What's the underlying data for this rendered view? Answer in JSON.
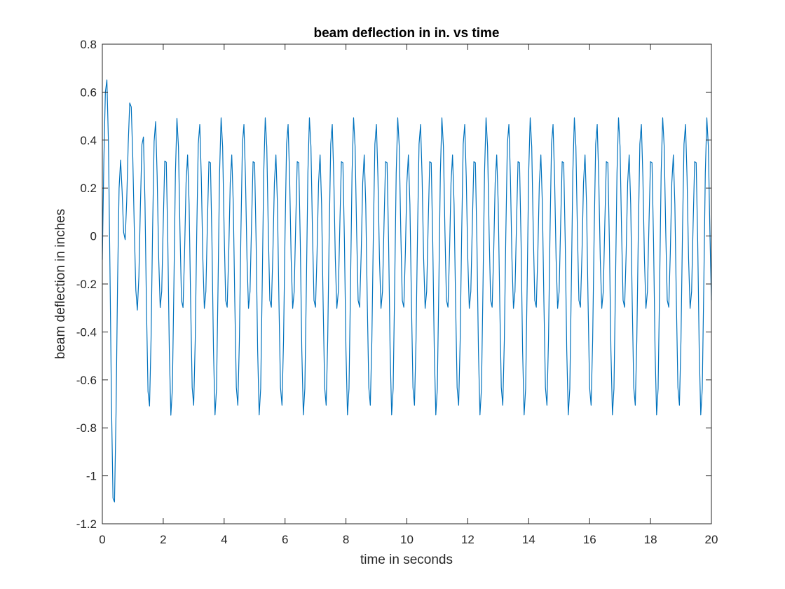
{
  "chart_data": {
    "type": "line",
    "title": "beam deflection in in. vs time",
    "xlabel": "time in seconds",
    "ylabel": "beam deflection in inches",
    "xlim": [
      0,
      20
    ],
    "ylim": [
      -1.2,
      0.8
    ],
    "xticks": [
      "0",
      "2",
      "4",
      "6",
      "8",
      "10",
      "12",
      "14",
      "16",
      "18",
      "20"
    ],
    "yticks": [
      "-1.2",
      "-1",
      "-0.8",
      "-0.6",
      "-0.4",
      "-0.2",
      "0",
      "0.2",
      "0.4",
      "0.6",
      "0.8"
    ],
    "grid": false,
    "box": true,
    "series": [
      {
        "color": "#0072BD",
        "x": [
          0,
          0.05,
          0.1,
          0.15,
          0.2,
          0.25,
          0.3,
          0.35,
          0.4,
          0.45,
          0.5,
          0.55,
          0.6,
          0.65,
          0.7,
          0.75,
          0.8,
          0.85,
          0.9,
          0.95,
          1.0,
          1.05,
          1.1,
          1.15,
          1.2,
          1.25,
          1.3,
          1.35,
          1.4,
          1.45,
          1.5,
          1.55,
          1.6,
          1.65,
          1.7,
          1.75,
          1.8,
          1.85,
          1.9,
          1.95,
          2.0,
          2.05,
          2.1,
          2.15,
          2.2,
          2.25,
          2.3,
          2.35,
          2.4,
          2.45,
          2.5,
          2.55,
          2.6,
          2.65,
          2.7,
          2.75,
          2.8,
          2.85,
          2.9,
          2.95,
          3.0,
          3.05,
          3.1,
          3.15,
          3.2,
          3.25,
          3.3,
          3.35,
          3.4,
          3.45,
          3.5,
          3.55,
          3.6,
          3.65,
          3.7,
          3.75,
          3.8,
          3.85,
          3.9,
          3.95,
          4.0,
          4.05,
          4.1,
          4.15,
          4.2,
          4.25,
          4.3,
          4.35,
          4.4,
          4.45,
          4.5,
          4.55,
          4.6,
          4.65,
          4.7,
          4.75,
          4.8,
          4.85,
          4.9,
          4.95,
          5.0,
          5.05,
          5.1,
          5.15,
          5.2,
          5.25,
          5.3,
          5.35,
          5.4,
          5.45,
          5.5,
          5.55,
          5.6,
          5.65,
          5.7,
          5.75,
          5.8,
          5.85,
          5.9,
          5.95,
          6.0,
          6.05,
          6.1,
          6.15,
          6.2,
          6.25,
          6.3,
          6.35,
          6.4,
          6.45,
          6.5,
          6.55,
          6.6,
          6.65,
          6.7,
          6.75,
          6.8,
          6.85,
          6.9,
          6.95,
          7.0,
          7.05,
          7.1,
          7.15,
          7.2,
          7.25,
          7.3,
          7.35,
          7.4,
          7.45,
          7.5,
          7.55,
          7.6,
          7.65,
          7.7,
          7.75,
          7.8,
          7.85,
          7.9,
          7.95,
          8.0,
          8.05,
          8.1,
          8.15,
          8.2,
          8.25,
          8.3,
          8.35,
          8.4,
          8.45,
          8.5,
          8.55,
          8.6,
          8.65,
          8.7,
          8.75,
          8.8,
          8.85,
          8.9,
          8.95,
          9.0,
          9.05,
          9.1,
          9.15,
          9.2,
          9.25,
          9.3,
          9.35,
          9.4,
          9.45,
          9.5,
          9.55,
          9.6,
          9.65,
          9.7,
          9.75,
          9.8,
          9.85,
          9.9,
          9.95,
          10.0,
          10.05,
          10.1,
          10.15,
          10.2,
          10.25,
          10.3,
          10.35,
          10.4,
          10.45,
          10.5,
          10.55,
          10.6,
          10.65,
          10.7,
          10.75,
          10.8,
          10.85,
          10.9,
          10.95,
          11.0,
          11.05,
          11.1,
          11.15,
          11.2,
          11.25,
          11.3,
          11.35,
          11.4,
          11.45,
          11.5,
          11.55,
          11.6,
          11.65,
          11.7,
          11.75,
          11.8,
          11.85,
          11.9,
          11.95,
          12.0,
          12.05,
          12.1,
          12.15,
          12.2,
          12.25,
          12.3,
          12.35,
          12.4,
          12.45,
          12.5,
          12.55,
          12.6,
          12.65,
          12.7,
          12.75,
          12.8,
          12.85,
          12.9,
          12.95,
          13.0,
          13.05,
          13.1,
          13.15,
          13.2,
          13.25,
          13.3,
          13.35,
          13.4,
          13.45,
          13.5,
          13.55,
          13.6,
          13.65,
          13.7,
          13.75,
          13.8,
          13.85,
          13.9,
          13.95,
          14.0,
          14.05,
          14.1,
          14.15,
          14.2,
          14.25,
          14.3,
          14.35,
          14.4,
          14.45,
          14.5,
          14.55,
          14.6,
          14.65,
          14.7,
          14.75,
          14.8,
          14.85,
          14.9,
          14.95,
          15.0,
          15.05,
          15.1,
          15.15,
          15.2,
          15.25,
          15.3,
          15.35,
          15.4,
          15.45,
          15.5,
          15.55,
          15.6,
          15.65,
          15.7,
          15.75,
          15.8,
          15.85,
          15.9,
          15.95,
          16.0,
          16.05,
          16.1,
          16.15,
          16.2,
          16.25,
          16.3,
          16.35,
          16.4,
          16.45,
          16.5,
          16.55,
          16.6,
          16.65,
          16.7,
          16.75,
          16.8,
          16.85,
          16.9,
          16.95,
          17.0,
          17.05,
          17.1,
          17.15,
          17.2,
          17.25,
          17.3,
          17.35,
          17.4,
          17.45,
          17.5,
          17.55,
          17.6,
          17.65,
          17.7,
          17.75,
          17.8,
          17.85,
          17.9,
          17.95,
          18.0,
          18.05,
          18.1,
          18.15,
          18.2,
          18.25,
          18.3,
          18.35,
          18.4,
          18.45,
          18.5,
          18.55,
          18.6,
          18.65,
          18.7,
          18.75,
          18.8,
          18.85,
          18.9,
          18.95,
          19.0,
          19.05,
          19.1,
          19.15,
          19.2,
          19.25,
          19.3,
          19.35,
          19.4,
          19.45,
          19.5,
          19.55,
          19.6,
          19.65,
          19.7,
          19.75,
          19.8,
          19.85,
          19.9,
          19.95,
          20.0
        ],
        "y": [
          -0.099,
          0.314,
          0.6,
          0.651,
          0.395,
          -0.129,
          -0.694,
          -1.093,
          -1.109,
          -0.739,
          -0.201,
          0.199,
          0.317,
          0.186,
          0.015,
          -0.015,
          0.145,
          0.384,
          0.555,
          0.538,
          0.328,
          0.028,
          -0.225,
          -0.309,
          -0.17,
          0.124,
          0.381,
          0.413,
          0.143,
          -0.3,
          -0.648,
          -0.709,
          -0.431,
          0.02,
          0.394,
          0.477,
          0.252,
          -0.088,
          -0.298,
          -0.23,
          0.052,
          0.312,
          0.308,
          -0.024,
          -0.477,
          -0.747,
          -0.637,
          -0.207,
          0.263,
          0.491,
          0.371,
          0.02,
          -0.269,
          -0.298,
          -0.073,
          0.222,
          0.338,
          0.132,
          -0.276,
          -0.631,
          -0.706,
          -0.437,
          0.012,
          0.384,
          0.465,
          0.246,
          -0.092,
          -0.302,
          -0.231,
          0.051,
          0.31,
          0.306,
          -0.024,
          -0.476,
          -0.746,
          -0.636,
          -0.206,
          0.264,
          0.493,
          0.373,
          0.021,
          -0.268,
          -0.297,
          -0.073,
          0.222,
          0.338,
          0.132,
          -0.276,
          -0.631,
          -0.706,
          -0.437,
          0.012,
          0.384,
          0.465,
          0.246,
          -0.092,
          -0.302,
          -0.231,
          0.051,
          0.31,
          0.306,
          -0.024,
          -0.476,
          -0.746,
          -0.636,
          -0.206,
          0.264,
          0.493,
          0.373,
          0.021,
          -0.268,
          -0.297,
          -0.073,
          0.222,
          0.338,
          0.132,
          -0.276,
          -0.631,
          -0.706,
          -0.437,
          0.012,
          0.384,
          0.465,
          0.246,
          -0.092,
          -0.302,
          -0.231,
          0.051,
          0.31,
          0.306,
          -0.024,
          -0.476,
          -0.746,
          -0.636,
          -0.206,
          0.264,
          0.493,
          0.373,
          0.021,
          -0.268,
          -0.297,
          -0.073,
          0.222,
          0.338,
          0.132,
          -0.276,
          -0.631,
          -0.706,
          -0.437,
          0.012,
          0.384,
          0.465,
          0.246,
          -0.092,
          -0.302,
          -0.231,
          0.051,
          0.31,
          0.306,
          -0.024,
          -0.476,
          -0.746,
          -0.636,
          -0.206,
          0.264,
          0.493,
          0.373,
          0.021,
          -0.268,
          -0.297,
          -0.073,
          0.222,
          0.338,
          0.132,
          -0.276,
          -0.631,
          -0.706,
          -0.437,
          0.012,
          0.384,
          0.465,
          0.246,
          -0.092,
          -0.302,
          -0.231,
          0.051,
          0.31,
          0.306,
          -0.024,
          -0.476,
          -0.746,
          -0.636,
          -0.206,
          0.264,
          0.493,
          0.373,
          0.021,
          -0.268,
          -0.297,
          -0.073,
          0.222,
          0.338,
          0.132,
          -0.276,
          -0.631,
          -0.706,
          -0.437,
          0.012,
          0.384,
          0.465,
          0.246,
          -0.092,
          -0.302,
          -0.231,
          0.051,
          0.31,
          0.306,
          -0.024,
          -0.476,
          -0.746,
          -0.636,
          -0.206,
          0.264,
          0.493,
          0.373,
          0.021,
          -0.268,
          -0.297,
          -0.073,
          0.222,
          0.338,
          0.132,
          -0.276,
          -0.631,
          -0.706,
          -0.437,
          0.012,
          0.384,
          0.465,
          0.246,
          -0.092,
          -0.302,
          -0.231,
          0.051,
          0.31,
          0.306,
          -0.024,
          -0.476,
          -0.746,
          -0.636,
          -0.206,
          0.264,
          0.493,
          0.373,
          0.021,
          -0.268,
          -0.297,
          -0.073,
          0.222,
          0.338,
          0.132,
          -0.276,
          -0.631,
          -0.706,
          -0.437,
          0.012,
          0.384,
          0.465,
          0.246,
          -0.092,
          -0.302,
          -0.231,
          0.051,
          0.31,
          0.306,
          -0.024,
          -0.476,
          -0.746,
          -0.636,
          -0.206,
          0.264,
          0.493,
          0.373,
          0.021,
          -0.268,
          -0.297,
          -0.073,
          0.222,
          0.338,
          0.132,
          -0.276,
          -0.631,
          -0.706,
          -0.437,
          0.012,
          0.384,
          0.465,
          0.246,
          -0.092,
          -0.302,
          -0.231,
          0.051,
          0.31,
          0.306,
          -0.024,
          -0.476,
          -0.746,
          -0.636,
          -0.206,
          0.264,
          0.493,
          0.373,
          0.021,
          -0.268,
          -0.297,
          -0.073,
          0.222,
          0.338,
          0.132,
          -0.276,
          -0.631,
          -0.706,
          -0.437,
          0.012,
          0.384,
          0.465,
          0.246,
          -0.092,
          -0.302,
          -0.231,
          0.051,
          0.31,
          0.306,
          -0.024,
          -0.476,
          -0.746,
          -0.636,
          -0.206,
          0.264,
          0.493,
          0.373,
          0.021,
          -0.268,
          -0.297,
          -0.073,
          0.222,
          0.338,
          0.132,
          -0.276,
          -0.631,
          -0.706,
          -0.437,
          0.012,
          0.384,
          0.465,
          0.246,
          -0.092,
          -0.302,
          -0.231,
          0.051,
          0.31,
          0.306,
          -0.024,
          -0.476,
          -0.746,
          -0.636,
          -0.206,
          0.264,
          0.493,
          0.373,
          0.021,
          -0.268,
          -0.297,
          -0.073,
          0.222,
          0.338,
          0.132,
          -0.276,
          -0.631,
          -0.706,
          -0.437,
          0.012,
          0.384,
          0.465,
          0.246,
          -0.092,
          -0.302,
          -0.231,
          0.051,
          0.31,
          0.306,
          -0.024,
          -0.476,
          -0.746,
          -0.636,
          -0.206,
          0.264,
          0.493,
          0.373,
          0.021,
          -0.268
        ]
      }
    ]
  }
}
